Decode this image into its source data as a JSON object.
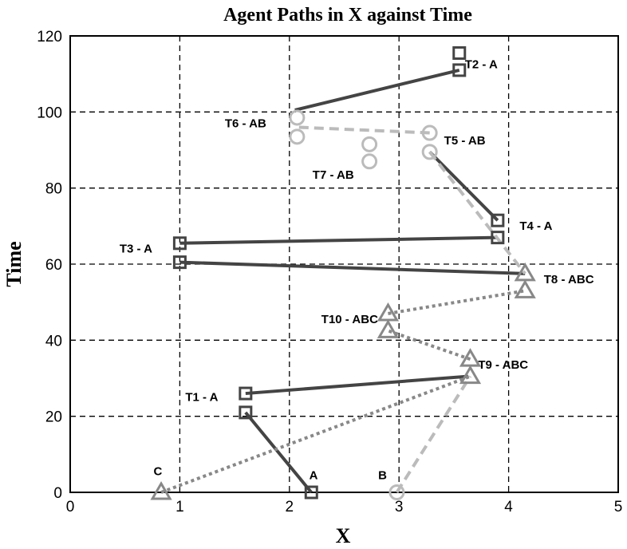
{
  "chart_data": {
    "type": "line",
    "title": "Agent Paths in X against Time",
    "xlabel": "X",
    "ylabel": "Time",
    "xlim": [
      0,
      5
    ],
    "ylim": [
      0,
      120
    ],
    "xticks": [
      "0",
      "1",
      "2",
      "3",
      "4",
      "5"
    ],
    "yticks": [
      "0",
      "20",
      "40",
      "60",
      "80",
      "100",
      "120"
    ],
    "grid": true,
    "legend": "none",
    "series": [
      {
        "name": "A",
        "style": "solid",
        "color": "#444444",
        "marker": "square",
        "segments": [
          [
            [
              2.2,
              0
            ],
            [
              1.6,
              21
            ]
          ],
          [
            [
              1.6,
              26
            ],
            [
              3.63,
              30.5
            ]
          ],
          [
            [
              1.0,
              60.5
            ],
            [
              4.15,
              57.5
            ]
          ],
          [
            [
              1.0,
              65.5
            ],
            [
              3.9,
              67
            ]
          ],
          [
            [
              3.9,
              71.5
            ],
            [
              3.28,
              89.5
            ]
          ],
          [
            [
              2.05,
              100.5
            ],
            [
              3.55,
              111
            ]
          ]
        ]
      },
      {
        "name": "B",
        "style": "dashed",
        "color": "#bbbbbb",
        "marker": "circle",
        "segments": [
          [
            [
              2.98,
              0
            ],
            [
              3.65,
              30.5
            ]
          ],
          [
            [
              3.28,
              89.5
            ],
            [
              4.15,
              57.5
            ]
          ],
          [
            [
              3.28,
              94.5
            ],
            [
              2.07,
              96
            ]
          ]
        ]
      },
      {
        "name": "C",
        "style": "dotted",
        "color": "#888888",
        "marker": "triangle",
        "segments": [
          [
            [
              0.83,
              0
            ],
            [
              3.65,
              30.5
            ]
          ],
          [
            [
              3.65,
              35
            ],
            [
              2.9,
              42.5
            ]
          ],
          [
            [
              2.9,
              47
            ],
            [
              4.15,
              53
            ]
          ]
        ]
      }
    ],
    "markers": [
      {
        "shape": "square",
        "color": "#444444",
        "x": 2.2,
        "y": 0
      },
      {
        "shape": "circle",
        "color": "#bbbbbb",
        "x": 2.98,
        "y": 0
      },
      {
        "shape": "triangle",
        "color": "#888888",
        "x": 0.83,
        "y": 0
      },
      {
        "shape": "square",
        "color": "#444444",
        "x": 1.6,
        "y": 21
      },
      {
        "shape": "square",
        "color": "#444444",
        "x": 1.6,
        "y": 26
      },
      {
        "shape": "triangle",
        "color": "#888888",
        "x": 3.65,
        "y": 30.5
      },
      {
        "shape": "triangle",
        "color": "#888888",
        "x": 3.65,
        "y": 35
      },
      {
        "shape": "triangle",
        "color": "#888888",
        "x": 2.9,
        "y": 42.5
      },
      {
        "shape": "triangle",
        "color": "#888888",
        "x": 2.9,
        "y": 47
      },
      {
        "shape": "triangle",
        "color": "#888888",
        "x": 4.15,
        "y": 53
      },
      {
        "shape": "triangle",
        "color": "#888888",
        "x": 4.15,
        "y": 57.5
      },
      {
        "shape": "square",
        "color": "#444444",
        "x": 1.0,
        "y": 60.5
      },
      {
        "shape": "square",
        "color": "#444444",
        "x": 1.0,
        "y": 65.5
      },
      {
        "shape": "square",
        "color": "#444444",
        "x": 3.9,
        "y": 67
      },
      {
        "shape": "square",
        "color": "#444444",
        "x": 3.9,
        "y": 71.5
      },
      {
        "shape": "circle",
        "color": "#bbbbbb",
        "x": 2.73,
        "y": 87
      },
      {
        "shape": "circle",
        "color": "#bbbbbb",
        "x": 2.73,
        "y": 91.5
      },
      {
        "shape": "circle",
        "color": "#bbbbbb",
        "x": 3.28,
        "y": 89.5
      },
      {
        "shape": "circle",
        "color": "#bbbbbb",
        "x": 3.28,
        "y": 94.5
      },
      {
        "shape": "circle",
        "color": "#bbbbbb",
        "x": 2.07,
        "y": 93.5
      },
      {
        "shape": "circle",
        "color": "#bbbbbb",
        "x": 2.07,
        "y": 98.5
      },
      {
        "shape": "square",
        "color": "#444444",
        "x": 3.55,
        "y": 111
      },
      {
        "shape": "square",
        "color": "#444444",
        "x": 3.55,
        "y": 115.5
      }
    ],
    "annotations": [
      {
        "text": "A",
        "x": 2.22,
        "y": 3.5
      },
      {
        "text": "B",
        "x": 2.85,
        "y": 3.5
      },
      {
        "text": "C",
        "x": 0.8,
        "y": 4.5
      },
      {
        "text": "T1 - A",
        "x": 1.2,
        "y": 24
      },
      {
        "text": "T2 - A",
        "x": 3.75,
        "y": 111.5
      },
      {
        "text": "T3 - A",
        "x": 0.6,
        "y": 63
      },
      {
        "text": "T4 - A",
        "x": 4.25,
        "y": 69
      },
      {
        "text": "T5 - AB",
        "x": 3.6,
        "y": 91.5
      },
      {
        "text": "T6 - AB",
        "x": 1.6,
        "y": 96
      },
      {
        "text": "T7 - AB",
        "x": 2.4,
        "y": 82.5
      },
      {
        "text": "T8 - ABC",
        "x": 4.55,
        "y": 55
      },
      {
        "text": "T9 - ABC",
        "x": 3.95,
        "y": 32.5
      },
      {
        "text": "T10 - ABC",
        "x": 2.55,
        "y": 44.5
      }
    ]
  }
}
